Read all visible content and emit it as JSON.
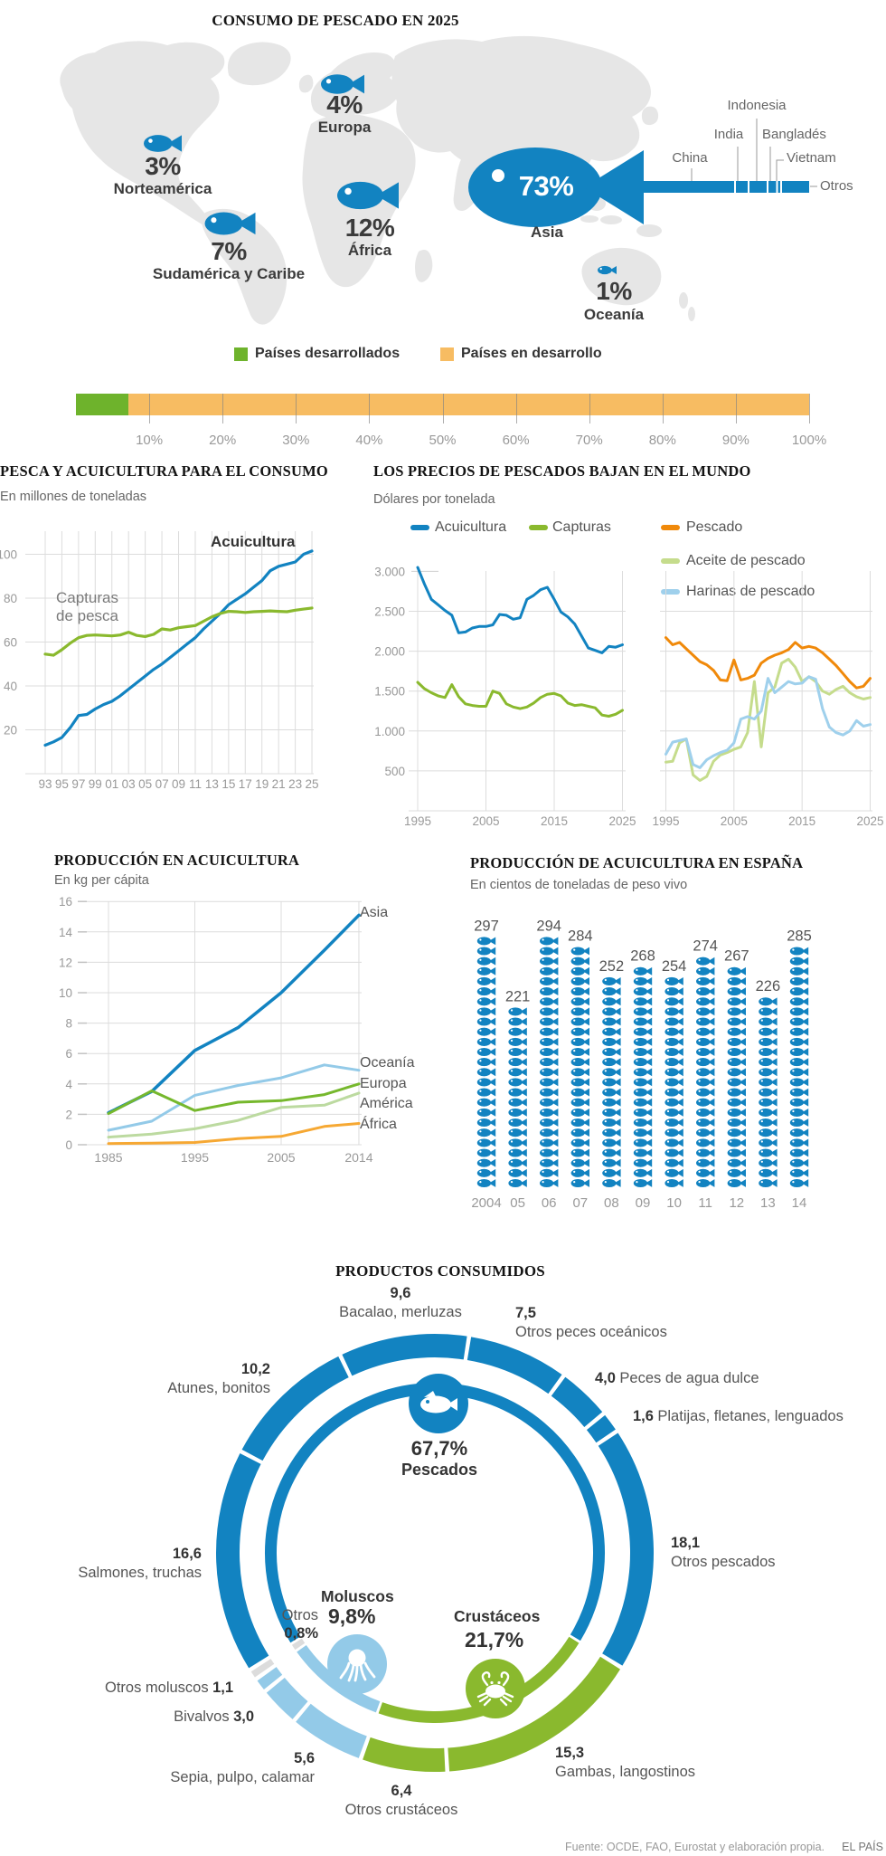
{
  "page": {
    "footer_source": "Fuente: OCDE, FAO, Eurostat y elaboración propia.",
    "footer_brand": "EL PAÍS"
  },
  "colors": {
    "blue": "#1283c1",
    "light_blue": "#93cae8",
    "green": "#8ab92e",
    "legend_green": "#6eb32c",
    "bar_orange": "#f7bc62",
    "map_gray": "#e6e6e6",
    "grid": "#dcdcdc"
  },
  "chart_data": [
    {
      "type": "pictogram-map",
      "title": "CONSUMO DE PESCADO EN 2025",
      "regions": [
        {
          "name": "Norteamérica",
          "pct": "3%"
        },
        {
          "name": "Europa",
          "pct": "4%"
        },
        {
          "name": "Sudamérica y Caribe",
          "pct": "7%"
        },
        {
          "name": "África",
          "pct": "12%"
        },
        {
          "name": "Asia",
          "pct": "73%"
        },
        {
          "name": "Oceanía",
          "pct": "1%"
        }
      ],
      "asia_breakdown": [
        {
          "label": "China",
          "weight": 105
        },
        {
          "label": "India",
          "weight": 13
        },
        {
          "label": "Indonesia",
          "weight": 19
        },
        {
          "label": "Bangladés",
          "weight": 8.5
        },
        {
          "label": "Vietnam",
          "weight": 2.5
        },
        {
          "label": "Otros",
          "weight": 30
        }
      ]
    },
    {
      "type": "bar",
      "legend": [
        "Países desarrollados",
        "Países en desarrollo"
      ],
      "developed_pct": 7.2,
      "developing_pct": 92.8,
      "ticks": [
        "10%",
        "20%",
        "30%",
        "40%",
        "50%",
        "60%",
        "70%",
        "80%",
        "90%",
        "100%"
      ]
    },
    {
      "type": "line",
      "title": "PESCA Y ACUICULTURA PARA EL CONSUMO",
      "subtitle": "En millones de toneladas",
      "x_start": 1993,
      "x_step": 1,
      "xticks": [
        "93",
        "95",
        "97",
        "99",
        "01",
        "03",
        "05",
        "07",
        "09",
        "11",
        "13",
        "15",
        "17",
        "19",
        "21",
        "23",
        "25"
      ],
      "yticks": [
        20,
        40,
        60,
        80,
        100
      ],
      "ylim": [
        0,
        106
      ],
      "annotation_acuicultura": "Acuicultura",
      "annotation_capturas": "Capturas\nde pesca",
      "series": [
        {
          "name": "Acuicultura",
          "color": "#1283c1",
          "values": [
            13,
            14.5,
            16.5,
            21,
            26.5,
            27,
            29.5,
            31.5,
            33,
            35.5,
            38.5,
            41.5,
            44.5,
            47.5,
            50,
            53,
            56,
            59,
            62,
            66,
            69.5,
            73,
            77,
            79.5,
            82,
            85,
            88,
            92.5,
            94.5,
            95.5,
            96.5,
            100,
            101.5
          ]
        },
        {
          "name": "Capturas de pesca",
          "color": "#8ab92e",
          "values": [
            54.5,
            54,
            56.5,
            59.5,
            62,
            63,
            63.2,
            63,
            62.8,
            63.2,
            64.5,
            63,
            62.5,
            63.5,
            66,
            65.5,
            66.5,
            67,
            67.5,
            69.5,
            71.5,
            73,
            74,
            73.8,
            73.5,
            73.8,
            74,
            74.2,
            74,
            73.8,
            74.5,
            75,
            75.5
          ]
        }
      ]
    },
    {
      "type": "line",
      "title": "LOS PRECIOS DE PESCADOS BAJAN EN EL MUNDO",
      "subtitle": "Dólares por tonelada",
      "x_start": 1995,
      "xticks": [
        "1995",
        "2005",
        "2015",
        "2025"
      ],
      "ytick_values": [
        500,
        1000,
        1500,
        2000,
        2500,
        3000
      ],
      "yticks": [
        "500",
        "1.000",
        "1.500",
        "2.000",
        "2.500",
        "3.000"
      ],
      "panels": [
        {
          "series": [
            {
              "name": "Acuicultura",
              "color": "#1283c1",
              "values": [
                3050,
                2840,
                2650,
                2580,
                2510,
                2450,
                2230,
                2240,
                2290,
                2310,
                2310,
                2330,
                2460,
                2450,
                2400,
                2420,
                2650,
                2700,
                2770,
                2800,
                2650,
                2490,
                2430,
                2340,
                2190,
                2040,
                2010,
                1980,
                2060,
                2050,
                2080
              ]
            },
            {
              "name": "Capturas",
              "color": "#8ab92e",
              "values": [
                1610,
                1530,
                1480,
                1440,
                1420,
                1580,
                1430,
                1340,
                1320,
                1310,
                1310,
                1500,
                1470,
                1340,
                1300,
                1280,
                1300,
                1350,
                1420,
                1460,
                1470,
                1440,
                1350,
                1320,
                1330,
                1310,
                1290,
                1200,
                1185,
                1210,
                1260
              ]
            }
          ]
        },
        {
          "series": [
            {
              "name": "Pescado",
              "color": "#f0890a",
              "values": [
                2170,
                2080,
                2110,
                2030,
                1950,
                1870,
                1830,
                1760,
                1640,
                1630,
                1890,
                1640,
                1660,
                1700,
                1850,
                1910,
                1950,
                1980,
                2020,
                2110,
                2040,
                2060,
                2040,
                1980,
                1900,
                1820,
                1720,
                1620,
                1540,
                1560,
                1660
              ]
            },
            {
              "name": "Aceite de pescado",
              "color": "#c5dc8c",
              "values": [
                610,
                620,
                850,
                900,
                450,
                380,
                430,
                620,
                700,
                730,
                770,
                800,
                980,
                1620,
                800,
                1480,
                1550,
                1850,
                1900,
                1800,
                1620,
                1680,
                1620,
                1500,
                1460,
                1520,
                1560,
                1480,
                1430,
                1400,
                1420
              ]
            },
            {
              "name": "Harinas de pescado",
              "color": "#9fd0ec",
              "values": [
                710,
                860,
                880,
                900,
                580,
                540,
                640,
                690,
                730,
                760,
                850,
                1150,
                1180,
                1150,
                1250,
                1660,
                1480,
                1550,
                1620,
                1590,
                1600,
                1680,
                1650,
                1280,
                1050,
                980,
                950,
                1000,
                1130,
                1060,
                1080
              ]
            }
          ]
        }
      ]
    },
    {
      "type": "line",
      "title": "PRODUCCIÓN EN ACUICULTURA",
      "subtitle": "En kg per cápita",
      "x": [
        1985,
        1990,
        1995,
        2000,
        2005,
        2010,
        2014
      ],
      "xticks": [
        "1985",
        "1995",
        "2005",
        "2014"
      ],
      "xtick_values": [
        1985,
        1995,
        2005,
        2014
      ],
      "yticks": [
        0,
        2,
        4,
        6,
        8,
        10,
        12,
        14,
        16
      ],
      "series": [
        {
          "name": "Asia",
          "color": "#1283c1",
          "width": 3.5,
          "values": [
            2.1,
            3.5,
            6.2,
            7.7,
            10,
            12.8,
            15.1
          ]
        },
        {
          "name": "Oceanía",
          "color": "#93cae8",
          "width": 3,
          "values": [
            0.95,
            1.55,
            3.25,
            3.9,
            4.4,
            5.25,
            4.9
          ]
        },
        {
          "name": "Europa",
          "color": "#76b82d",
          "width": 3,
          "values": [
            2.05,
            3.55,
            2.25,
            2.8,
            2.9,
            3.3,
            4
          ]
        },
        {
          "name": "América",
          "color": "#bcdaa0",
          "width": 3,
          "values": [
            0.5,
            0.7,
            1.05,
            1.6,
            2.45,
            2.6,
            3.4
          ]
        },
        {
          "name": "África",
          "color": "#f6a833",
          "width": 3,
          "values": [
            0.08,
            0.1,
            0.15,
            0.4,
            0.55,
            1.2,
            1.4
          ]
        }
      ]
    },
    {
      "type": "pictogram-bar",
      "title": "PRODUCCIÓN DE ACUICULTURA EN ESPAÑA",
      "subtitle": "En cientos de toneladas de peso vivo",
      "categories": [
        "2004",
        "05",
        "06",
        "07",
        "08",
        "09",
        "10",
        "11",
        "12",
        "13",
        "14"
      ],
      "values": [
        297,
        221,
        294,
        284,
        252,
        268,
        254,
        274,
        267,
        226,
        285
      ],
      "unit_per_icon": 12
    },
    {
      "type": "donut",
      "title": "PRODUCTOS CONSUMIDOS",
      "start_angle_deg": 9,
      "groups": {
        "pescados": {
          "name": "Pescados",
          "pct": "67,7%",
          "color": "#1283c1"
        },
        "crustaceos": {
          "name": "Crustáceos",
          "pct": "21,7%",
          "color": "#8ab92e"
        },
        "moluscos": {
          "name": "Moluscos",
          "pct": "9,8%",
          "color": "#93cae8"
        },
        "otros": {
          "name": "Otros",
          "pct": "0,8%",
          "color": "#dcdcdc"
        }
      },
      "segments": [
        {
          "label": "Otros peces oceánicos",
          "value": 7.5,
          "value_label": "7,5",
          "group": "pescados"
        },
        {
          "label": "Peces de agua dulce",
          "value": 4,
          "value_label": "4,0",
          "group": "pescados"
        },
        {
          "label": "Platijas, fletanes, lenguados",
          "value": 1.6,
          "value_label": "1,6",
          "group": "pescados"
        },
        {
          "label": "Otros pescados",
          "value": 18.1,
          "value_label": "18,1",
          "group": "pescados"
        },
        {
          "label": "Gambas, langostinos",
          "value": 15.3,
          "value_label": "15,3",
          "group": "crustaceos"
        },
        {
          "label": "Otros crustáceos",
          "value": 6.4,
          "value_label": "6,4",
          "group": "crustaceos"
        },
        {
          "label": "Sepia, pulpo, calamar",
          "value": 5.6,
          "value_label": "5,6",
          "group": "moluscos"
        },
        {
          "label": "Bivalvos",
          "value": 3,
          "value_label": "3,0",
          "group": "moluscos"
        },
        {
          "label": "Otros moluscos",
          "value": 1.1,
          "value_label": "1,1",
          "group": "moluscos"
        },
        {
          "label": "Otros",
          "value": 0.8,
          "value_label": "0,8%",
          "group": "otros"
        },
        {
          "label": "Salmones, truchas",
          "value": 16.6,
          "value_label": "16,6",
          "group": "pescados"
        },
        {
          "label": "Atunes, bonitos",
          "value": 10.2,
          "value_label": "10,2",
          "group": "pescados"
        },
        {
          "label": "Bacalao, merluzas",
          "value": 9.6,
          "value_label": "9,6",
          "group": "pescados"
        }
      ]
    }
  ]
}
